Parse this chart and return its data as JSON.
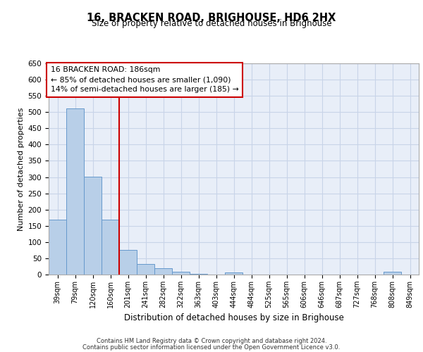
{
  "title": "16, BRACKEN ROAD, BRIGHOUSE, HD6 2HX",
  "subtitle": "Size of property relative to detached houses in Brighouse",
  "xlabel": "Distribution of detached houses by size in Brighouse",
  "ylabel": "Number of detached properties",
  "categories": [
    "39sqm",
    "79sqm",
    "120sqm",
    "160sqm",
    "201sqm",
    "241sqm",
    "282sqm",
    "322sqm",
    "363sqm",
    "403sqm",
    "444sqm",
    "484sqm",
    "525sqm",
    "565sqm",
    "606sqm",
    "646sqm",
    "687sqm",
    "727sqm",
    "768sqm",
    "808sqm",
    "849sqm"
  ],
  "values": [
    168,
    511,
    302,
    169,
    76,
    32,
    19,
    8,
    2,
    0,
    7,
    0,
    0,
    0,
    0,
    0,
    0,
    0,
    0,
    8,
    0
  ],
  "bar_color": "#b8cfe8",
  "bar_edge_color": "#6699cc",
  "background_color": "#e8eef8",
  "grid_color": "#c8d4e8",
  "vline_color": "#cc0000",
  "annotation_text": "16 BRACKEN ROAD: 186sqm\n← 85% of detached houses are smaller (1,090)\n14% of semi-detached houses are larger (185) →",
  "annotation_box_color": "#ffffff",
  "annotation_box_edge_color": "#cc0000",
  "ylim": [
    0,
    650
  ],
  "yticks": [
    0,
    50,
    100,
    150,
    200,
    250,
    300,
    350,
    400,
    450,
    500,
    550,
    600,
    650
  ],
  "footer_line1": "Contains HM Land Registry data © Crown copyright and database right 2024.",
  "footer_line2": "Contains public sector information licensed under the Open Government Licence v3.0.",
  "title_fontsize": 10.5,
  "subtitle_fontsize": 8.5
}
